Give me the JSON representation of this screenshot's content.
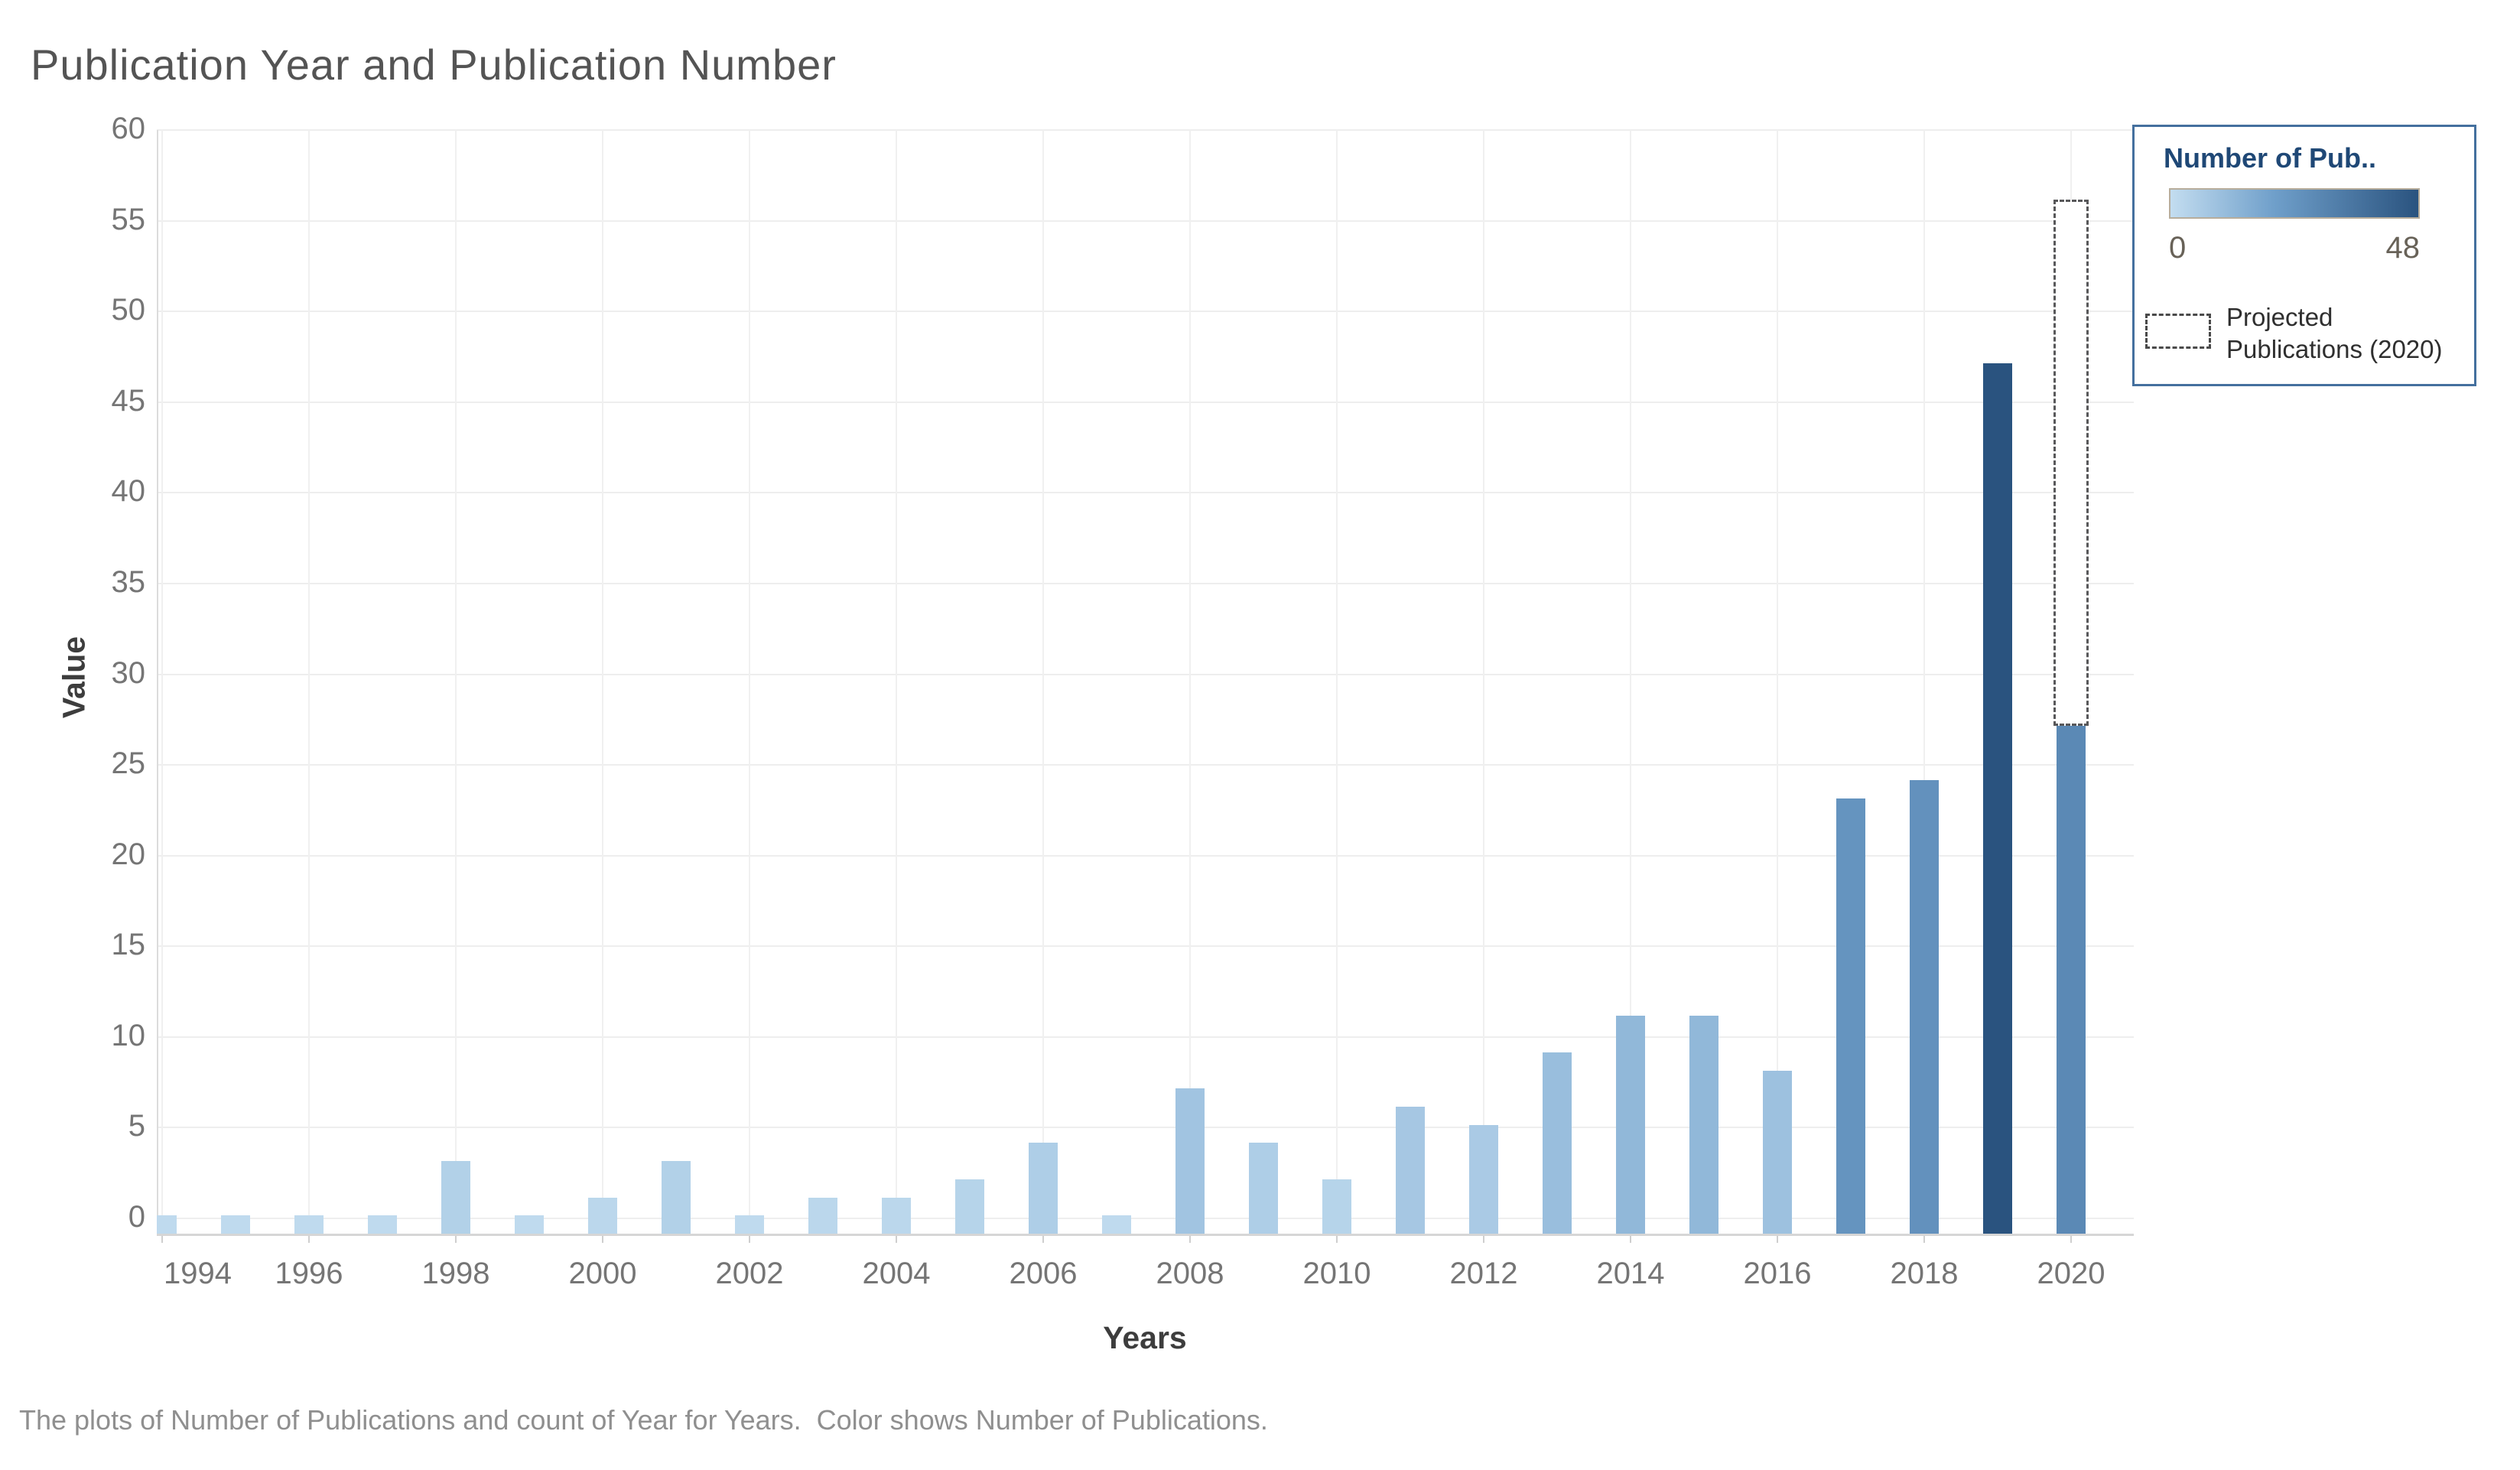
{
  "ui": {
    "title": "Publication Year and Publication Number",
    "caption": "The plots of Number of Publications and count of Year for Years.  Color shows Number of Publications.",
    "legend": {
      "title": "Number of Pub..",
      "min_label": "0",
      "max_label": "48",
      "projected_label_line1": "Projected",
      "projected_label_line2": "Publications (2020)"
    }
  },
  "colors": {
    "ramp_min": "#c3ddf0",
    "ramp_mid": "#6f9fca",
    "ramp_max": "#2a537f",
    "ramp_mid_value": 20,
    "gridline": "#eeeeee",
    "axis_line": "#d6d6d6",
    "tick_label": "#757575",
    "legend_border": "#44709e",
    "legend_title_text": "#1f4876",
    "dashed_outline": "#58585a"
  },
  "chart_data": {
    "type": "bar",
    "title": "Publication Year and Publication Number",
    "xlabel": "Years",
    "ylabel": "Value",
    "x": [
      1994,
      1995,
      1996,
      1997,
      1998,
      1999,
      2000,
      2001,
      2002,
      2003,
      2004,
      2005,
      2006,
      2007,
      2008,
      2009,
      2010,
      2011,
      2012,
      2013,
      2014,
      2015,
      2016,
      2017,
      2018,
      2019,
      2020
    ],
    "values": [
      1,
      1,
      1,
      1,
      4,
      1,
      2,
      4,
      1,
      2,
      2,
      3,
      5,
      1,
      8,
      5,
      3,
      7,
      6,
      10,
      12,
      12,
      9,
      24,
      25,
      48,
      28
    ],
    "projected_2020": 57,
    "series_name": "count of Year",
    "color_encoding": {
      "field": "Number of Publications",
      "min": 0,
      "max": 48
    },
    "ylim": [
      0,
      60
    ],
    "ytick_step": 5,
    "xtick_labels": [
      1994,
      1996,
      1998,
      2000,
      2002,
      2004,
      2006,
      2008,
      2010,
      2012,
      2014,
      2016,
      2018,
      2020
    ],
    "grid": true,
    "legend_position": "top-right"
  }
}
